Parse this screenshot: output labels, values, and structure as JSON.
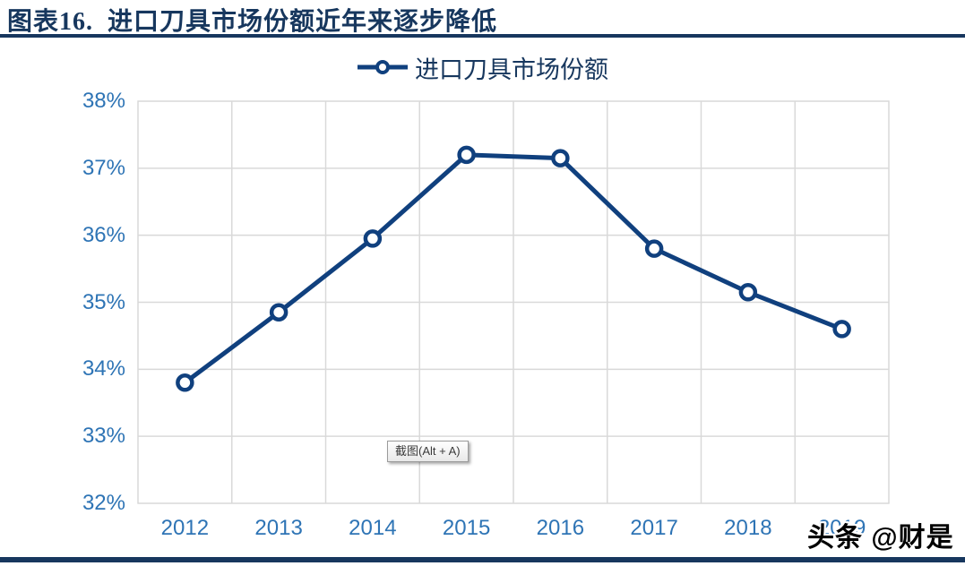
{
  "header": {
    "title": "图表16.  进口刀具市场份额近年来逐步降低"
  },
  "legend": {
    "label": "进口刀具市场份额"
  },
  "overlay": {
    "screenshot_tooltip": "截图(Alt + A)"
  },
  "watermark": {
    "text": "头条 @财是"
  },
  "colors": {
    "title_navy": "#17375E",
    "series_line": "#10407E",
    "axis_label_blue": "#2E74B5",
    "gridline_gray": "#D9D9D9"
  },
  "chart_data": {
    "type": "line",
    "title": "进口刀具市场份额近年来逐步降低",
    "categories": [
      "2012",
      "2013",
      "2014",
      "2015",
      "2016",
      "2017",
      "2018",
      "2019"
    ],
    "series": [
      {
        "name": "进口刀具市场份额",
        "values": [
          33.8,
          34.85,
          35.95,
          37.2,
          37.15,
          35.8,
          35.15,
          34.6
        ]
      }
    ],
    "ylim": [
      32,
      38
    ],
    "ytick_step": 1,
    "ytick_suffix": "%",
    "xlabel": "",
    "ylabel": "",
    "grid": true,
    "legend_position": "top",
    "marker": "open-circle"
  }
}
